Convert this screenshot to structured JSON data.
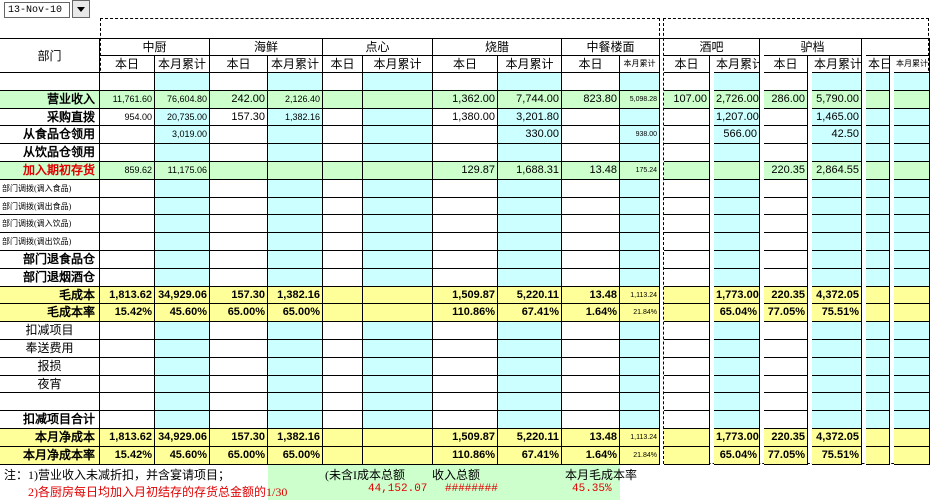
{
  "date_cell": "13-Nov-10",
  "header": {
    "dept_label": "部门",
    "groups": [
      "中厨",
      "海鲜",
      "点心",
      "烧腊",
      "中餐楼面",
      "酒吧",
      "驴档"
    ],
    "subheaders": [
      "本日",
      "本月累计",
      "本日",
      "本月累计",
      "本日",
      "本月累计",
      "本日",
      "本月累计",
      "本日",
      "本月累计",
      "本日",
      "本月累计",
      "本日",
      "本月累计",
      "本日",
      "本月累计"
    ]
  },
  "rows": [
    {
      "label": null,
      "cells": [
        null,
        null,
        null,
        null,
        null,
        null,
        null,
        null,
        null,
        null,
        null,
        null,
        null,
        null,
        null,
        null
      ]
    },
    {
      "label": "营业收入",
      "cells": [
        "11,761.60",
        "76,604.80",
        "242.00",
        "2,126.40",
        null,
        null,
        "1,362.00",
        "7,744.00",
        "823.80",
        "5,098.28",
        "107.00",
        "2,726.00",
        "286.00",
        "5,790.00",
        null,
        null
      ]
    },
    {
      "label": "采购直拨",
      "cells": [
        "954.00",
        "20,735.00",
        "157.30",
        "1,382.16",
        null,
        null,
        "1,380.00",
        "3,201.80",
        null,
        null,
        null,
        "1,207.00",
        null,
        "1,465.00",
        null,
        null
      ]
    },
    {
      "label": "从食品仓领用",
      "cells": [
        null,
        "3,019.00",
        null,
        null,
        null,
        null,
        null,
        "330.00",
        null,
        "938.00",
        null,
        "566.00",
        null,
        "42.50",
        null,
        null
      ]
    },
    {
      "label": "从饮品仓领用",
      "cells": [
        null,
        null,
        null,
        null,
        null,
        null,
        null,
        null,
        null,
        null,
        null,
        null,
        null,
        null,
        null,
        null
      ]
    },
    {
      "label": "加入期初存货",
      "cells": [
        "859.62",
        "11,175.06",
        null,
        null,
        null,
        null,
        "129.87",
        "1,688.31",
        "13.48",
        "175.24",
        null,
        null,
        "220.35",
        "2,864.55",
        null,
        null
      ]
    },
    {
      "label": "部门调拨(调入食品)",
      "cells": [
        null,
        null,
        null,
        null,
        null,
        null,
        null,
        null,
        null,
        null,
        null,
        null,
        null,
        null,
        null,
        null
      ]
    },
    {
      "label": "部门调拨(调出食品)",
      "cells": [
        null,
        null,
        null,
        null,
        null,
        null,
        null,
        null,
        null,
        null,
        null,
        null,
        null,
        null,
        null,
        null
      ]
    },
    {
      "label": "部门调拨(调入饮品)",
      "cells": [
        null,
        null,
        null,
        null,
        null,
        null,
        null,
        null,
        null,
        null,
        null,
        null,
        null,
        null,
        null,
        null
      ]
    },
    {
      "label": "部门调拨(调出饮品)",
      "cells": [
        null,
        null,
        null,
        null,
        null,
        null,
        null,
        null,
        null,
        null,
        null,
        null,
        null,
        null,
        null,
        null
      ]
    },
    {
      "label": "部门退食品仓",
      "cells": [
        null,
        null,
        null,
        null,
        null,
        null,
        null,
        null,
        null,
        null,
        null,
        null,
        null,
        null,
        null,
        null
      ]
    },
    {
      "label": "部门退烟酒仓",
      "cells": [
        null,
        null,
        null,
        null,
        null,
        null,
        null,
        null,
        null,
        null,
        null,
        null,
        null,
        null,
        null,
        null
      ]
    },
    {
      "label": "毛成本",
      "cells": [
        "1,813.62",
        "34,929.06",
        "157.30",
        "1,382.16",
        null,
        null,
        "1,509.87",
        "5,220.11",
        "13.48",
        "1,113.24",
        null,
        "1,773.00",
        "220.35",
        "4,372.05",
        null,
        null
      ]
    },
    {
      "label": "毛成本率",
      "cells": [
        "15.42%",
        "45.60%",
        "65.00%",
        "65.00%",
        null,
        null,
        "110.86%",
        "67.41%",
        "1.64%",
        "21.84%",
        null,
        "65.04%",
        "77.05%",
        "75.51%",
        null,
        null
      ]
    },
    {
      "label": "扣减项目",
      "cells": [
        null,
        null,
        null,
        null,
        null,
        null,
        null,
        null,
        null,
        null,
        null,
        null,
        null,
        null,
        null,
        null
      ]
    },
    {
      "label": "奉送费用",
      "cells": [
        null,
        null,
        null,
        null,
        null,
        null,
        null,
        null,
        null,
        null,
        null,
        null,
        null,
        null,
        null,
        null
      ]
    },
    {
      "label": "报损",
      "cells": [
        null,
        null,
        null,
        null,
        null,
        null,
        null,
        null,
        null,
        null,
        null,
        null,
        null,
        null,
        null,
        null
      ]
    },
    {
      "label": "夜宵",
      "cells": [
        null,
        null,
        null,
        null,
        null,
        null,
        null,
        null,
        null,
        null,
        null,
        null,
        null,
        null,
        null,
        null
      ]
    },
    {
      "label": null,
      "cells": [
        null,
        null,
        null,
        null,
        null,
        null,
        null,
        null,
        null,
        null,
        null,
        null,
        null,
        null,
        null,
        null
      ]
    },
    {
      "label": "扣减项目合计",
      "cells": [
        null,
        null,
        null,
        null,
        null,
        null,
        null,
        null,
        null,
        null,
        null,
        null,
        null,
        null,
        null,
        null
      ]
    },
    {
      "label": "本月净成本",
      "cells": [
        "1,813.62",
        "34,929.06",
        "157.30",
        "1,382.16",
        null,
        null,
        "1,509.87",
        "5,220.11",
        "13.48",
        "1,113.24",
        null,
        "1,773.00",
        "220.35",
        "4,372.05",
        null,
        null
      ]
    },
    {
      "label": "本月净成本率",
      "cells": [
        "15.42%",
        "45.60%",
        "65.00%",
        "65.00%",
        null,
        null,
        "110.86%",
        "67.41%",
        "1.64%",
        "21.84%",
        null,
        "65.04%",
        "77.05%",
        "75.51%",
        null,
        null
      ]
    }
  ],
  "notes": {
    "line1": "注：1)营业收入未减折扣，并含宴请项目；",
    "line2": "2)各厨房每日均加入月初结存的存货总金额的1/30",
    "col_a": "(未含I成本总额",
    "col_b": "收入总额",
    "col_c": "本月毛成本率",
    "val_a": "44,152.07",
    "val_b": "########",
    "val_c": "45.35%"
  }
}
